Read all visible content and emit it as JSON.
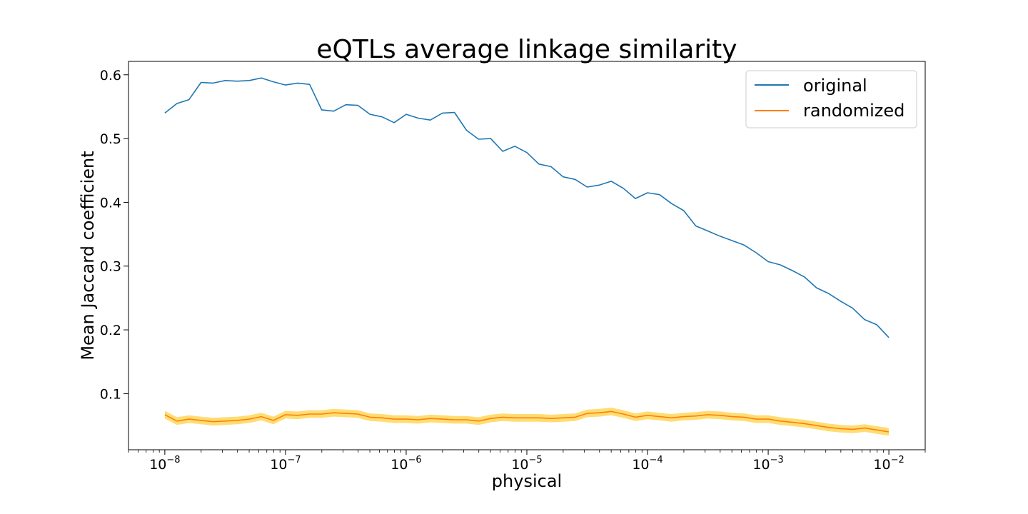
{
  "chart_data": {
    "type": "line",
    "title": "eQTLs average linkage similarity",
    "xlabel": "physical",
    "ylabel": "Mean Jaccard coefficient",
    "x_scale": "log",
    "xlim": [
      5e-09,
      0.02
    ],
    "ylim": [
      0.012,
      0.621
    ],
    "grid": false,
    "legend_position": "top-right",
    "x_ticks": [
      {
        "value": 1e-08,
        "base": "10",
        "exp": "−8"
      },
      {
        "value": 1e-07,
        "base": "10",
        "exp": "−7"
      },
      {
        "value": 1e-06,
        "base": "10",
        "exp": "−6"
      },
      {
        "value": 1e-05,
        "base": "10",
        "exp": "−5"
      },
      {
        "value": 0.0001,
        "base": "10",
        "exp": "−4"
      },
      {
        "value": 0.001,
        "base": "10",
        "exp": "−3"
      },
      {
        "value": 0.01,
        "base": "10",
        "exp": "−2"
      }
    ],
    "y_ticks": [
      {
        "value": 0.1,
        "label": "0.1"
      },
      {
        "value": 0.2,
        "label": "0.2"
      },
      {
        "value": 0.3,
        "label": "0.3"
      },
      {
        "value": 0.4,
        "label": "0.4"
      },
      {
        "value": 0.5,
        "label": "0.5"
      },
      {
        "value": 0.6,
        "label": "0.6"
      }
    ],
    "x_log10": [
      -8.0,
      -7.9,
      -7.8,
      -7.7,
      -7.6,
      -7.5,
      -7.4,
      -7.3,
      -7.2,
      -7.1,
      -7.0,
      -6.9,
      -6.8,
      -6.7,
      -6.6,
      -6.5,
      -6.4,
      -6.3,
      -6.2,
      -6.1,
      -6.0,
      -5.9,
      -5.8,
      -5.7,
      -5.6,
      -5.5,
      -5.4,
      -5.3,
      -5.2,
      -5.1,
      -5.0,
      -4.9,
      -4.8,
      -4.7,
      -4.6,
      -4.5,
      -4.4,
      -4.3,
      -4.2,
      -4.1,
      -4.0,
      -3.9,
      -3.8,
      -3.7,
      -3.6,
      -3.5,
      -3.4,
      -3.3,
      -3.2,
      -3.1,
      -3.0,
      -2.9,
      -2.8,
      -2.7,
      -2.6,
      -2.5,
      -2.4,
      -2.3,
      -2.2,
      -2.1,
      -2.0
    ],
    "series": [
      {
        "name": "original",
        "color": "#1f77b4",
        "values": [
          0.54,
          0.555,
          0.561,
          0.588,
          0.587,
          0.591,
          0.59,
          0.591,
          0.595,
          0.589,
          0.584,
          0.587,
          0.585,
          0.545,
          0.543,
          0.553,
          0.552,
          0.538,
          0.534,
          0.525,
          0.538,
          0.532,
          0.529,
          0.54,
          0.541,
          0.513,
          0.499,
          0.5,
          0.48,
          0.488,
          0.478,
          0.46,
          0.456,
          0.44,
          0.436,
          0.424,
          0.427,
          0.433,
          0.422,
          0.406,
          0.415,
          0.412,
          0.398,
          0.387,
          0.363,
          0.355,
          0.347,
          0.34,
          0.333,
          0.321,
          0.307,
          0.302,
          0.293,
          0.283,
          0.266,
          0.257,
          0.245,
          0.234,
          0.216,
          0.208,
          0.188
        ]
      },
      {
        "name": "randomized",
        "color": "#ff7f0e",
        "band_color": "#ffd54f",
        "values": [
          0.067,
          0.057,
          0.06,
          0.058,
          0.056,
          0.057,
          0.058,
          0.06,
          0.064,
          0.058,
          0.067,
          0.066,
          0.068,
          0.068,
          0.07,
          0.069,
          0.068,
          0.063,
          0.062,
          0.06,
          0.06,
          0.059,
          0.061,
          0.06,
          0.059,
          0.059,
          0.057,
          0.061,
          0.063,
          0.062,
          0.062,
          0.062,
          0.061,
          0.062,
          0.063,
          0.069,
          0.07,
          0.072,
          0.068,
          0.063,
          0.066,
          0.064,
          0.062,
          0.064,
          0.065,
          0.067,
          0.066,
          0.064,
          0.063,
          0.06,
          0.06,
          0.057,
          0.055,
          0.053,
          0.05,
          0.047,
          0.045,
          0.044,
          0.046,
          0.043,
          0.04
        ],
        "band": 0.006
      }
    ]
  }
}
